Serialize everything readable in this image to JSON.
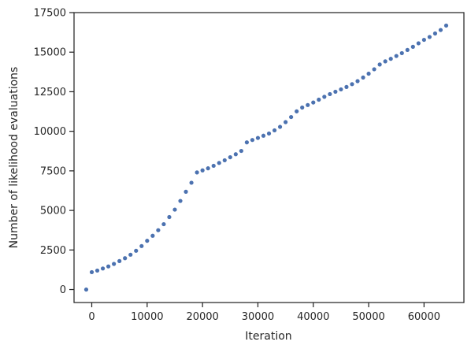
{
  "chart_data": {
    "type": "scatter",
    "title": "",
    "xlabel": "Iteration",
    "ylabel": "Number of likelihood evaluations",
    "xlim": [
      -3200,
      67200
    ],
    "ylim": [
      -820,
      17500
    ],
    "xticks": [
      0,
      10000,
      20000,
      30000,
      40000,
      50000,
      60000
    ],
    "xtick_labels": [
      "0",
      "10000",
      "20000",
      "30000",
      "40000",
      "50000",
      "60000"
    ],
    "yticks": [
      0,
      2500,
      5000,
      7500,
      10000,
      12500,
      15000,
      17500
    ],
    "ytick_labels": [
      "0",
      "2500",
      "5000",
      "7500",
      "10000",
      "12500",
      "15000",
      "17500"
    ],
    "grid": false,
    "marker_color": "#4c72b0",
    "series": [
      {
        "x": [
          -1000,
          0,
          1000,
          2000,
          3000,
          4000,
          5000,
          6000,
          7000,
          8000,
          9000,
          10000,
          11000,
          12000,
          13000,
          14000,
          15000,
          16000,
          17000,
          18000,
          19000,
          20000,
          21000,
          22000,
          23000,
          24000,
          25000,
          26000,
          27000,
          28000,
          29000,
          30000,
          31000,
          32000,
          33000,
          34000,
          35000,
          36000,
          37000,
          38000,
          39000,
          40000,
          41000,
          42000,
          43000,
          44000,
          45000,
          46000,
          47000,
          48000,
          49000,
          50000,
          51000,
          52000,
          53000,
          54000,
          55000,
          56000,
          57000,
          58000,
          59000,
          60000,
          61000,
          62000,
          63000,
          64000
        ],
        "y": [
          0,
          1100,
          1200,
          1330,
          1460,
          1620,
          1800,
          1980,
          2200,
          2450,
          2750,
          3080,
          3400,
          3750,
          4130,
          4580,
          5050,
          5600,
          6180,
          6750,
          7400,
          7530,
          7660,
          7820,
          8000,
          8170,
          8360,
          8550,
          8760,
          9300,
          9450,
          9580,
          9720,
          9860,
          10060,
          10280,
          10580,
          10900,
          11260,
          11500,
          11660,
          11820,
          12000,
          12180,
          12350,
          12500,
          12650,
          12800,
          12980,
          13170,
          13400,
          13640,
          13920,
          14220,
          14420,
          14580,
          14760,
          14940,
          15140,
          15340,
          15560,
          15780,
          15960,
          16180,
          16400,
          16680
        ]
      }
    ]
  }
}
